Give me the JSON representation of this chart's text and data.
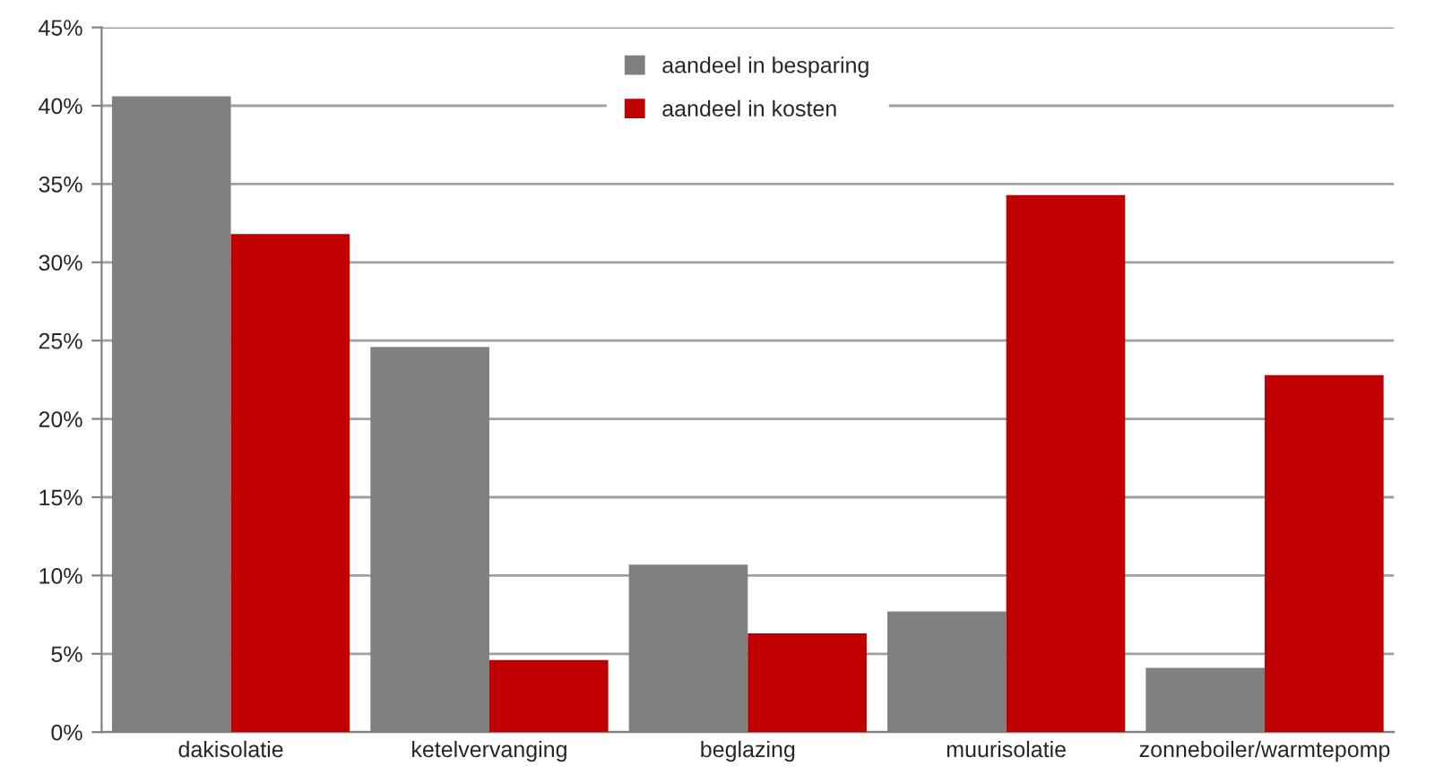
{
  "chart_data": {
    "type": "bar",
    "categories": [
      "dakisolatie",
      "ketelvervanging",
      "beglazing",
      "muurisolatie",
      "zonneboiler/warmtepomp"
    ],
    "series": [
      {
        "name": "aandeel in besparing",
        "color": "#808080",
        "values": [
          40.6,
          24.6,
          10.7,
          7.7,
          4.1
        ]
      },
      {
        "name": "aandeel in kosten",
        "color": "#c00000",
        "values": [
          31.8,
          4.6,
          6.3,
          34.3,
          22.8
        ]
      }
    ],
    "ylim": [
      0,
      45
    ],
    "yticks": [
      {
        "value": 0,
        "label": "0%"
      },
      {
        "value": 5,
        "label": "5%"
      },
      {
        "value": 10,
        "label": "10%"
      },
      {
        "value": 15,
        "label": "15%"
      },
      {
        "value": 20,
        "label": "20%"
      },
      {
        "value": 25,
        "label": "25%"
      },
      {
        "value": 30,
        "label": "30%"
      },
      {
        "value": 35,
        "label": "35%"
      },
      {
        "value": 40,
        "label": "40%"
      },
      {
        "value": 45,
        "label": "45%"
      }
    ],
    "grid": "y",
    "legend": "top"
  }
}
